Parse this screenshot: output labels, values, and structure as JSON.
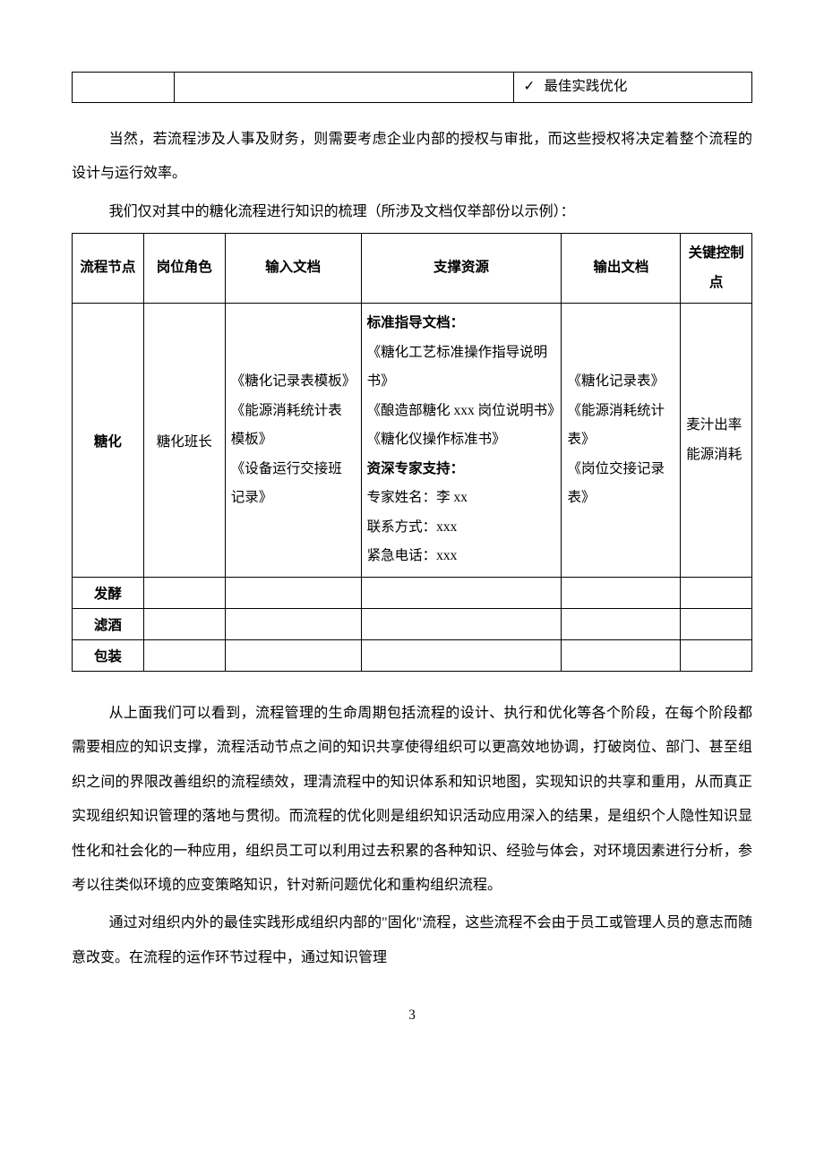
{
  "topTable": {
    "checkItem": "最佳实践优化"
  },
  "para1": "当然，若流程涉及人事及财务，则需要考虑企业内部的授权与审批，而这些授权将决定着整个流程的设计与运行效率。",
  "para2": "我们仅对其中的糖化流程进行知识的梳理（所涉及文档仅举部份以示例）：",
  "processTable": {
    "headers": [
      "流程节点",
      "岗位角色",
      "输入文档",
      "支撑资源",
      "输出文档",
      "关键控制点"
    ],
    "row1": {
      "node": "糖化",
      "role": "糖化班长",
      "inputDocs": [
        "《糖化记录表模板》",
        "《能源消耗统计表模板》",
        "《设备运行交接班记录》"
      ],
      "support": {
        "stdDocHeading": "标准指导文档：",
        "stdDocs": [
          "《糖化工艺标准操作指导说明书》",
          "《酿造部糖化 xxx 岗位说明书》",
          "《糖化仪操作标准书》"
        ],
        "expertHeading": "资深专家支持：",
        "expertName": "专家姓名：李 xx",
        "expertContact": "联系方式：xxx",
        "expertPhone": "紧急电话：xxx"
      },
      "outputDocs": [
        "《糖化记录表》",
        "《能源消耗统计表》",
        "《岗位交接记录表》"
      ],
      "controlPoints": [
        "麦汁出率",
        "能源消耗"
      ]
    },
    "row2": {
      "node": "发酵"
    },
    "row3": {
      "node": "滤酒"
    },
    "row4": {
      "node": "包装"
    }
  },
  "para3": "从上面我们可以看到，流程管理的生命周期包括流程的设计、执行和优化等各个阶段，在每个阶段都需要相应的知识支撑，流程活动节点之间的知识共享使得组织可以更高效地协调，打破岗位、部门、甚至组织之间的界限改善组织的流程绩效，理清流程中的知识体系和知识地图，实现知识的共享和重用，从而真正实现组织知识管理的落地与贯彻。而流程的优化则是组织知识活动应用深入的结果，是组织个人隐性知识显性化和社会化的一种应用，组织员工可以利用过去积累的各种知识、经验与体会，对环境因素进行分析，参考以往类似环境的应变策略知识，针对新问题优化和重构组织流程。",
  "para4": "通过对组织内外的最佳实践形成组织内部的\"固化\"流程，这些流程不会由于员工或管理人员的意志而随意改变。在流程的运作环节过程中，通过知识管理",
  "pageNumber": "3",
  "style": {
    "bodyFontSize": 16,
    "tableFontSize": 15.5,
    "lineHeightBody": 2.4,
    "lineHeightCell": 2.1,
    "textColor": "#000000",
    "borderColor": "#000000",
    "backgroundColor": "#ffffff"
  }
}
